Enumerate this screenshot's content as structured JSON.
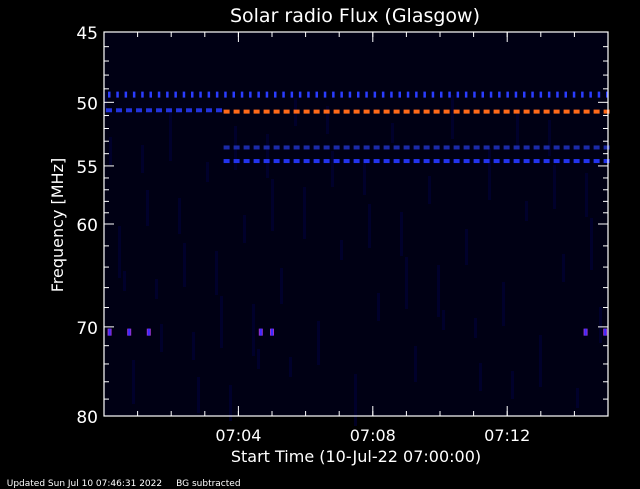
{
  "chart_data": {
    "type": "heatmap",
    "title": "Solar radio Flux (Glasgow)",
    "xlabel": "Start Time (10-Jul-22 07:00:00)",
    "ylabel": "Frequency [MHz]",
    "y_scale": "log",
    "y_reversed": true,
    "ylim": [
      45,
      80
    ],
    "xlim": [
      "07:00:00",
      "07:15:00"
    ],
    "y_ticks": [
      45,
      50,
      55,
      60,
      70,
      80
    ],
    "x_ticks": [
      "07:04",
      "07:08",
      "07:12"
    ],
    "background_color": "#000014",
    "bands": [
      {
        "freq_mhz": 49.5,
        "start": "07:00:00",
        "end": "07:15:00",
        "color": "#2a3cff",
        "pattern": "ticks"
      },
      {
        "freq_mhz": 50.6,
        "start": "07:00:00",
        "end": "07:03:30",
        "color": "#2233dd",
        "pattern": "dashes"
      },
      {
        "freq_mhz": 50.7,
        "start": "07:03:30",
        "end": "07:15:00",
        "color": "#ff6a1a",
        "pattern": "dashes"
      },
      {
        "freq_mhz": 53.5,
        "start": "07:03:30",
        "end": "07:15:00",
        "color": "#1b2aa8",
        "pattern": "dashes"
      },
      {
        "freq_mhz": 54.6,
        "start": "07:03:30",
        "end": "07:15:00",
        "color": "#2233ee",
        "pattern": "dashes"
      },
      {
        "freq_mhz": 70.5,
        "start": "07:00:10",
        "end": "07:01:20",
        "color": "#9933cc",
        "pattern": "dots"
      },
      {
        "freq_mhz": 70.5,
        "start": "07:04:40",
        "end": "07:05:00",
        "color": "#9933cc",
        "pattern": "dots"
      },
      {
        "freq_mhz": 70.5,
        "start": "07:14:20",
        "end": "07:14:55",
        "color": "#9933cc",
        "pattern": "dots"
      }
    ]
  },
  "footer": {
    "updated": "Updated Sun Jul 10 07:46:31 2022",
    "note": "BG subtracted"
  }
}
